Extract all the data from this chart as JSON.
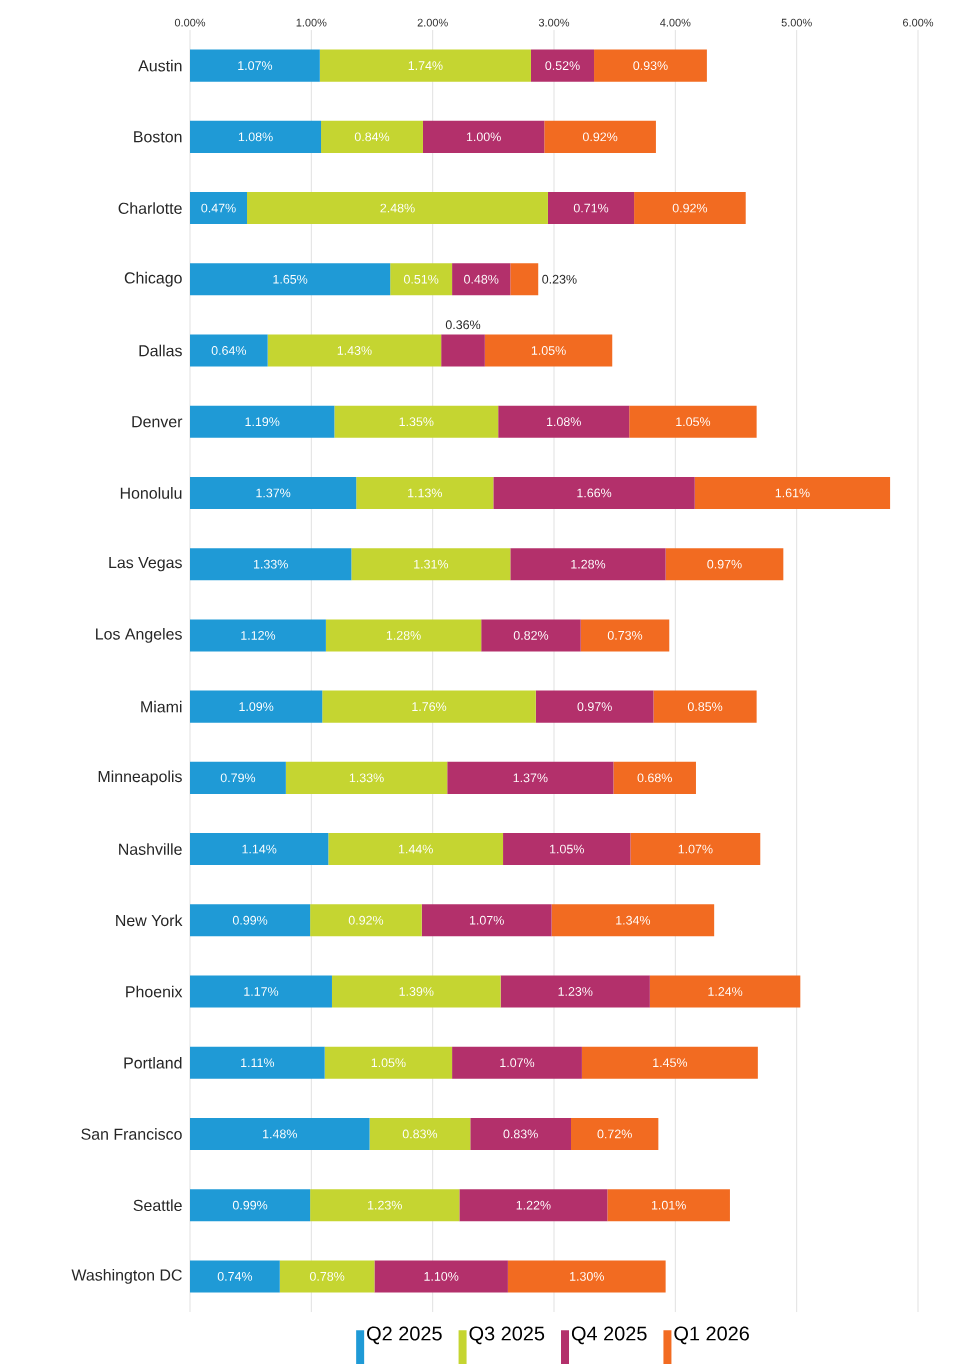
{
  "chart_data": {
    "type": "bar",
    "orientation": "horizontal",
    "stacked": true,
    "grid": "x",
    "legend": "bottom",
    "categories": [
      "Austin",
      "Boston",
      "Charlotte",
      "Chicago",
      "Dallas",
      "Denver",
      "Honolulu",
      "Las Vegas",
      "Los Angeles",
      "Miami",
      "Minneapolis",
      "Nashville",
      "New York",
      "Phoenix",
      "Portland",
      "San Francisco",
      "Seattle",
      "Washington DC"
    ],
    "xlim": [
      0,
      6
    ],
    "xticks": [
      {
        "value": 0,
        "label": "0.00%"
      },
      {
        "value": 1,
        "label": "1.00%"
      },
      {
        "value": 2,
        "label": "2.00%"
      },
      {
        "value": 3,
        "label": "3.00%"
      },
      {
        "value": 4,
        "label": "4.00%"
      },
      {
        "value": 5,
        "label": "5.00%"
      },
      {
        "value": 6,
        "label": "6.00%"
      }
    ],
    "series": [
      {
        "name": "Q2 2025",
        "color": "#1f9ad6",
        "values": [
          1.07,
          1.08,
          0.47,
          1.65,
          0.64,
          1.19,
          1.37,
          1.33,
          1.12,
          1.09,
          0.79,
          1.14,
          0.99,
          1.17,
          1.11,
          1.48,
          0.99,
          0.74
        ],
        "value_labels": [
          "1.07%",
          "1.08%",
          "0.47%",
          "1.65%",
          "0.64%",
          "1.19%",
          "1.37%",
          "1.33%",
          "1.12%",
          "1.09%",
          "0.79%",
          "1.14%",
          "0.99%",
          "1.17%",
          "1.11%",
          "1.48%",
          "0.99%",
          "0.74%"
        ]
      },
      {
        "name": "Q3 2025",
        "color": "#c5d531",
        "values": [
          1.74,
          0.84,
          2.48,
          0.51,
          1.43,
          1.35,
          1.13,
          1.31,
          1.28,
          1.76,
          1.33,
          1.44,
          0.92,
          1.39,
          1.05,
          0.83,
          1.23,
          0.78
        ],
        "value_labels": [
          "1.74%",
          "0.84%",
          "2.48%",
          "0.51%",
          "1.43%",
          "1.35%",
          "1.13%",
          "1.31%",
          "1.28%",
          "1.76%",
          "1.33%",
          "1.44%",
          "0.92%",
          "1.39%",
          "1.05%",
          "0.83%",
          "1.23%",
          "0.78%"
        ]
      },
      {
        "name": "Q4 2025",
        "color": "#b3306b",
        "values": [
          0.52,
          1.0,
          0.71,
          0.48,
          0.36,
          1.08,
          1.66,
          1.28,
          0.82,
          0.97,
          1.37,
          1.05,
          1.07,
          1.23,
          1.07,
          0.83,
          1.22,
          1.1
        ],
        "value_labels": [
          "0.52%",
          "1.00%",
          "0.71%",
          "0.48%",
          "0.36%",
          "1.08%",
          "1.66%",
          "1.28%",
          "0.82%",
          "0.97%",
          "1.37%",
          "1.05%",
          "1.07%",
          "1.23%",
          "1.07%",
          "0.83%",
          "1.22%",
          "1.10%"
        ]
      },
      {
        "name": "Q1 2026",
        "color": "#f26b21",
        "values": [
          0.93,
          0.92,
          0.92,
          0.23,
          1.05,
          1.05,
          1.61,
          0.97,
          0.73,
          0.85,
          0.68,
          1.07,
          1.34,
          1.24,
          1.45,
          0.72,
          1.01,
          1.3
        ],
        "value_labels": [
          "0.93%",
          "0.92%",
          "0.92%",
          "0.23%",
          "1.05%",
          "1.05%",
          "1.61%",
          "0.97%",
          "0.73%",
          "0.85%",
          "0.68%",
          "1.07%",
          "1.34%",
          "1.24%",
          "1.45%",
          "0.72%",
          "1.01%",
          "1.30%"
        ]
      }
    ]
  }
}
